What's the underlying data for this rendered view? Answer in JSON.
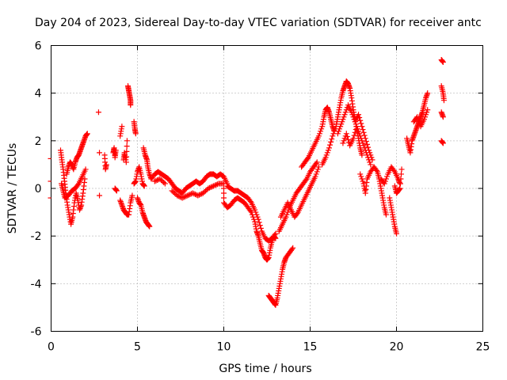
{
  "chart_data": {
    "type": "scatter",
    "title": "Day 204 of 2023, Sidereal Day-to-day VTEC variation (SDTVAR) for receiver antc",
    "xlabel": "GPS time / hours",
    "ylabel": "SDTVAR / TECUs",
    "xlim": [
      0,
      25
    ],
    "ylim": [
      -6,
      6
    ],
    "x_ticks": [
      0,
      5,
      10,
      15,
      20,
      25
    ],
    "x_tick_labels": [
      "0",
      "5",
      "10",
      "15",
      "20",
      "25"
    ],
    "y_ticks": [
      -6,
      -4,
      -2,
      0,
      2,
      4,
      6
    ],
    "y_tick_labels": [
      "-6",
      "-4",
      "-2",
      "0",
      "2",
      "4",
      "6"
    ],
    "grid": true,
    "marker": "+",
    "color": "#ff0000",
    "series": [
      {
        "name": "SDTVAR",
        "trace_points": [
          [
            0.55,
            1.6
          ],
          [
            0.62,
            1.2
          ],
          [
            0.7,
            0.8
          ],
          [
            0.78,
            0.3
          ],
          [
            0.85,
            -0.2
          ],
          [
            0.95,
            -0.7
          ],
          [
            1.05,
            -1.1
          ],
          [
            1.15,
            -1.5
          ],
          [
            1.25,
            -1.2
          ],
          [
            1.35,
            -0.6
          ],
          [
            1.45,
            -0.2
          ],
          [
            1.55,
            -0.5
          ],
          [
            1.65,
            -0.9
          ],
          [
            1.75,
            -0.7
          ],
          [
            1.85,
            -0.2
          ],
          [
            1.95,
            0.4
          ],
          [
            0.9,
            0.6
          ],
          [
            1.0,
            0.9
          ],
          [
            1.1,
            1.1
          ],
          [
            1.2,
            1.0
          ],
          [
            1.3,
            0.8
          ],
          [
            1.4,
            1.1
          ],
          [
            1.5,
            1.3
          ],
          [
            1.6,
            1.4
          ],
          [
            1.7,
            1.6
          ],
          [
            1.8,
            1.8
          ],
          [
            1.9,
            2.0
          ],
          [
            2.0,
            2.2
          ],
          [
            2.1,
            2.3
          ],
          [
            0.6,
            0.2
          ],
          [
            0.7,
            -0.1
          ],
          [
            0.8,
            -0.4
          ],
          [
            1.0,
            -0.3
          ],
          [
            1.2,
            -0.1
          ],
          [
            1.4,
            0.0
          ],
          [
            1.6,
            0.2
          ],
          [
            1.8,
            0.5
          ],
          [
            2.0,
            0.8
          ],
          [
            2.75,
            3.2
          ],
          [
            2.8,
            1.5
          ],
          [
            2.8,
            -0.3
          ],
          [
            3.1,
            1.4
          ],
          [
            3.15,
            0.8
          ],
          [
            3.2,
            1.0
          ],
          [
            3.6,
            1.5
          ],
          [
            3.65,
            1.7
          ],
          [
            3.7,
            1.3
          ],
          [
            3.75,
            1.6
          ],
          [
            3.7,
            0.0
          ],
          [
            3.8,
            -0.1
          ],
          [
            4.0,
            2.2
          ],
          [
            4.1,
            2.6
          ],
          [
            4.2,
            1.2
          ],
          [
            4.25,
            1.5
          ],
          [
            4.35,
            1.1
          ],
          [
            4.4,
            2.0
          ],
          [
            4.45,
            4.3
          ],
          [
            4.5,
            4.1
          ],
          [
            4.55,
            3.9
          ],
          [
            4.6,
            3.7
          ],
          [
            4.6,
            3.5
          ],
          [
            4.0,
            -0.5
          ],
          [
            4.1,
            -0.7
          ],
          [
            4.2,
            -0.9
          ],
          [
            4.3,
            -1.0
          ],
          [
            4.4,
            -1.1
          ],
          [
            4.5,
            -1.1
          ],
          [
            4.6,
            -0.6
          ],
          [
            4.7,
            -0.3
          ],
          [
            4.8,
            2.8
          ],
          [
            4.85,
            2.5
          ],
          [
            4.9,
            2.3
          ],
          [
            4.8,
            0.2
          ],
          [
            4.9,
            0.3
          ],
          [
            5.0,
            0.7
          ],
          [
            5.1,
            0.9
          ],
          [
            5.2,
            0.6
          ],
          [
            5.3,
            0.2
          ],
          [
            5.4,
            0.1
          ],
          [
            5.0,
            -0.4
          ],
          [
            5.1,
            -0.6
          ],
          [
            5.2,
            -0.7
          ],
          [
            5.3,
            -1.0
          ],
          [
            5.4,
            -1.2
          ],
          [
            5.5,
            -1.4
          ],
          [
            5.6,
            -1.5
          ],
          [
            5.7,
            -1.6
          ],
          [
            5.35,
            1.7
          ],
          [
            5.45,
            1.4
          ],
          [
            5.55,
            1.2
          ],
          [
            5.6,
            0.9
          ],
          [
            5.7,
            0.6
          ],
          [
            5.8,
            0.4
          ],
          [
            6.0,
            0.6
          ],
          [
            6.2,
            0.7
          ],
          [
            6.4,
            0.6
          ],
          [
            6.6,
            0.5
          ],
          [
            6.8,
            0.4
          ],
          [
            7.0,
            0.2
          ],
          [
            7.2,
            0.0
          ],
          [
            7.4,
            -0.1
          ],
          [
            7.6,
            -0.2
          ],
          [
            7.8,
            0.0
          ],
          [
            8.0,
            0.1
          ],
          [
            8.2,
            0.2
          ],
          [
            8.4,
            0.3
          ],
          [
            8.6,
            0.2
          ],
          [
            8.8,
            0.3
          ],
          [
            9.0,
            0.5
          ],
          [
            9.2,
            0.6
          ],
          [
            9.4,
            0.6
          ],
          [
            9.6,
            0.5
          ],
          [
            9.8,
            0.6
          ],
          [
            10.0,
            0.5
          ],
          [
            10.2,
            0.2
          ],
          [
            6.0,
            0.3
          ],
          [
            6.3,
            0.4
          ],
          [
            6.6,
            0.2
          ],
          [
            7.0,
            -0.1
          ],
          [
            7.3,
            -0.3
          ],
          [
            7.6,
            -0.4
          ],
          [
            7.9,
            -0.3
          ],
          [
            8.2,
            -0.2
          ],
          [
            8.5,
            -0.3
          ],
          [
            8.8,
            -0.2
          ],
          [
            9.1,
            0.0
          ],
          [
            9.4,
            0.1
          ],
          [
            9.7,
            0.2
          ],
          [
            10.0,
            0.2
          ],
          [
            10.0,
            -0.6
          ],
          [
            10.2,
            -0.8
          ],
          [
            10.4,
            -0.7
          ],
          [
            10.6,
            -0.5
          ],
          [
            10.8,
            -0.4
          ],
          [
            11.0,
            -0.5
          ],
          [
            11.2,
            -0.6
          ],
          [
            11.4,
            -0.8
          ],
          [
            11.6,
            -1.0
          ],
          [
            11.8,
            -1.4
          ],
          [
            11.9,
            -1.8
          ],
          [
            12.0,
            -2.0
          ],
          [
            12.1,
            -2.3
          ],
          [
            12.2,
            -2.6
          ],
          [
            12.3,
            -2.7
          ],
          [
            12.4,
            -2.9
          ],
          [
            12.5,
            -3.0
          ],
          [
            12.6,
            -2.9
          ],
          [
            12.7,
            -2.5
          ],
          [
            12.8,
            -2.2
          ],
          [
            12.9,
            -2.0
          ],
          [
            13.0,
            -2.1
          ],
          [
            10.2,
            0.1
          ],
          [
            10.4,
            0.0
          ],
          [
            10.6,
            -0.1
          ],
          [
            10.8,
            -0.1
          ],
          [
            11.0,
            -0.2
          ],
          [
            11.2,
            -0.3
          ],
          [
            11.4,
            -0.4
          ],
          [
            11.6,
            -0.6
          ],
          [
            11.8,
            -0.9
          ],
          [
            12.0,
            -1.3
          ],
          [
            12.2,
            -1.8
          ],
          [
            12.4,
            -2.1
          ],
          [
            12.6,
            -2.2
          ],
          [
            12.8,
            -2.1
          ],
          [
            13.0,
            -1.9
          ],
          [
            12.6,
            -4.5
          ],
          [
            12.7,
            -4.6
          ],
          [
            12.8,
            -4.7
          ],
          [
            12.9,
            -4.8
          ],
          [
            13.0,
            -4.9
          ],
          [
            13.1,
            -4.6
          ],
          [
            13.2,
            -4.2
          ],
          [
            13.3,
            -3.8
          ],
          [
            13.4,
            -3.4
          ],
          [
            13.5,
            -3.1
          ],
          [
            13.6,
            -2.9
          ],
          [
            13.8,
            -2.7
          ],
          [
            14.0,
            -2.5
          ],
          [
            13.2,
            -1.8
          ],
          [
            13.4,
            -1.5
          ],
          [
            13.6,
            -1.2
          ],
          [
            13.8,
            -0.8
          ],
          [
            14.0,
            -0.5
          ],
          [
            14.2,
            -0.2
          ],
          [
            14.4,
            0.0
          ],
          [
            14.6,
            0.2
          ],
          [
            14.8,
            0.4
          ],
          [
            15.0,
            0.7
          ],
          [
            15.2,
            0.9
          ],
          [
            15.4,
            1.1
          ],
          [
            13.3,
            -1.2
          ],
          [
            13.5,
            -0.9
          ],
          [
            13.7,
            -0.6
          ],
          [
            13.9,
            -0.9
          ],
          [
            14.1,
            -1.2
          ],
          [
            14.3,
            -1.0
          ],
          [
            14.5,
            -0.7
          ],
          [
            14.7,
            -0.4
          ],
          [
            14.9,
            -0.1
          ],
          [
            15.1,
            0.2
          ],
          [
            15.3,
            0.5
          ],
          [
            15.5,
            0.9
          ],
          [
            14.5,
            0.9
          ],
          [
            14.7,
            1.1
          ],
          [
            14.9,
            1.3
          ],
          [
            15.1,
            1.6
          ],
          [
            15.3,
            1.9
          ],
          [
            15.5,
            2.2
          ],
          [
            15.7,
            2.6
          ],
          [
            15.8,
            3.0
          ],
          [
            15.9,
            3.3
          ],
          [
            16.0,
            3.4
          ],
          [
            16.1,
            3.2
          ],
          [
            16.2,
            2.9
          ],
          [
            16.3,
            2.6
          ],
          [
            16.4,
            2.4
          ],
          [
            15.7,
            1.0
          ],
          [
            15.9,
            1.3
          ],
          [
            16.1,
            1.7
          ],
          [
            16.3,
            2.2
          ],
          [
            16.5,
            2.6
          ],
          [
            16.6,
            3.0
          ],
          [
            16.7,
            3.4
          ],
          [
            16.8,
            3.8
          ],
          [
            16.9,
            4.1
          ],
          [
            17.0,
            4.3
          ],
          [
            17.1,
            4.5
          ],
          [
            17.2,
            4.4
          ],
          [
            17.3,
            4.2
          ],
          [
            17.4,
            3.8
          ],
          [
            17.5,
            3.3
          ],
          [
            17.6,
            2.9
          ],
          [
            17.7,
            2.5
          ],
          [
            17.8,
            2.1
          ],
          [
            17.9,
            1.7
          ],
          [
            18.0,
            1.4
          ],
          [
            16.6,
            2.3
          ],
          [
            16.8,
            2.7
          ],
          [
            17.0,
            3.1
          ],
          [
            17.2,
            3.5
          ],
          [
            17.4,
            3.2
          ],
          [
            17.6,
            2.8
          ],
          [
            17.8,
            3.1
          ],
          [
            18.0,
            2.6
          ],
          [
            18.2,
            2.1
          ],
          [
            18.4,
            1.6
          ],
          [
            18.6,
            1.2
          ],
          [
            16.9,
            1.9
          ],
          [
            17.1,
            2.3
          ],
          [
            17.3,
            1.8
          ],
          [
            17.5,
            2.1
          ],
          [
            17.7,
            2.6
          ],
          [
            17.9,
            2.2
          ],
          [
            18.1,
            1.8
          ],
          [
            18.3,
            1.4
          ],
          [
            18.5,
            1.0
          ],
          [
            17.9,
            0.6
          ],
          [
            18.1,
            0.2
          ],
          [
            18.2,
            -0.2
          ],
          [
            18.3,
            0.4
          ],
          [
            18.5,
            0.7
          ],
          [
            18.7,
            0.9
          ],
          [
            18.9,
            0.7
          ],
          [
            19.0,
            0.4
          ],
          [
            19.1,
            0.0
          ],
          [
            19.2,
            -0.4
          ],
          [
            19.3,
            -0.8
          ],
          [
            19.4,
            -1.1
          ],
          [
            19.1,
            0.4
          ],
          [
            19.3,
            0.2
          ],
          [
            19.5,
            0.6
          ],
          [
            19.7,
            0.9
          ],
          [
            19.9,
            0.7
          ],
          [
            20.1,
            0.4
          ],
          [
            20.2,
            0.2
          ],
          [
            19.6,
            -0.4
          ],
          [
            19.7,
            -0.8
          ],
          [
            19.8,
            -1.2
          ],
          [
            19.9,
            -1.6
          ],
          [
            20.0,
            -1.9
          ],
          [
            19.9,
            0.1
          ],
          [
            20.0,
            -0.2
          ],
          [
            20.1,
            -0.1
          ],
          [
            20.2,
            0.0
          ],
          [
            20.3,
            0.8
          ],
          [
            20.6,
            2.1
          ],
          [
            20.7,
            1.8
          ],
          [
            20.8,
            1.5
          ],
          [
            20.9,
            2.0
          ],
          [
            21.0,
            2.2
          ],
          [
            21.1,
            2.4
          ],
          [
            21.2,
            2.6
          ],
          [
            21.3,
            2.8
          ],
          [
            21.4,
            3.0
          ],
          [
            21.5,
            3.2
          ],
          [
            21.6,
            3.5
          ],
          [
            21.7,
            3.8
          ],
          [
            21.8,
            4.0
          ],
          [
            21.0,
            2.8
          ],
          [
            21.2,
            3.0
          ],
          [
            21.4,
            2.6
          ],
          [
            21.6,
            2.9
          ],
          [
            21.8,
            3.3
          ],
          [
            22.6,
            5.4
          ],
          [
            22.7,
            5.3
          ],
          [
            22.6,
            4.3
          ],
          [
            22.7,
            4.0
          ],
          [
            22.75,
            3.7
          ],
          [
            22.6,
            3.2
          ],
          [
            22.7,
            3.0
          ],
          [
            22.6,
            2.0
          ],
          [
            22.7,
            1.9
          ]
        ],
        "edge_ticks": [
          [
            0,
            1.25
          ],
          [
            0,
            0.3
          ],
          [
            0,
            -0.4
          ]
        ]
      }
    ]
  }
}
